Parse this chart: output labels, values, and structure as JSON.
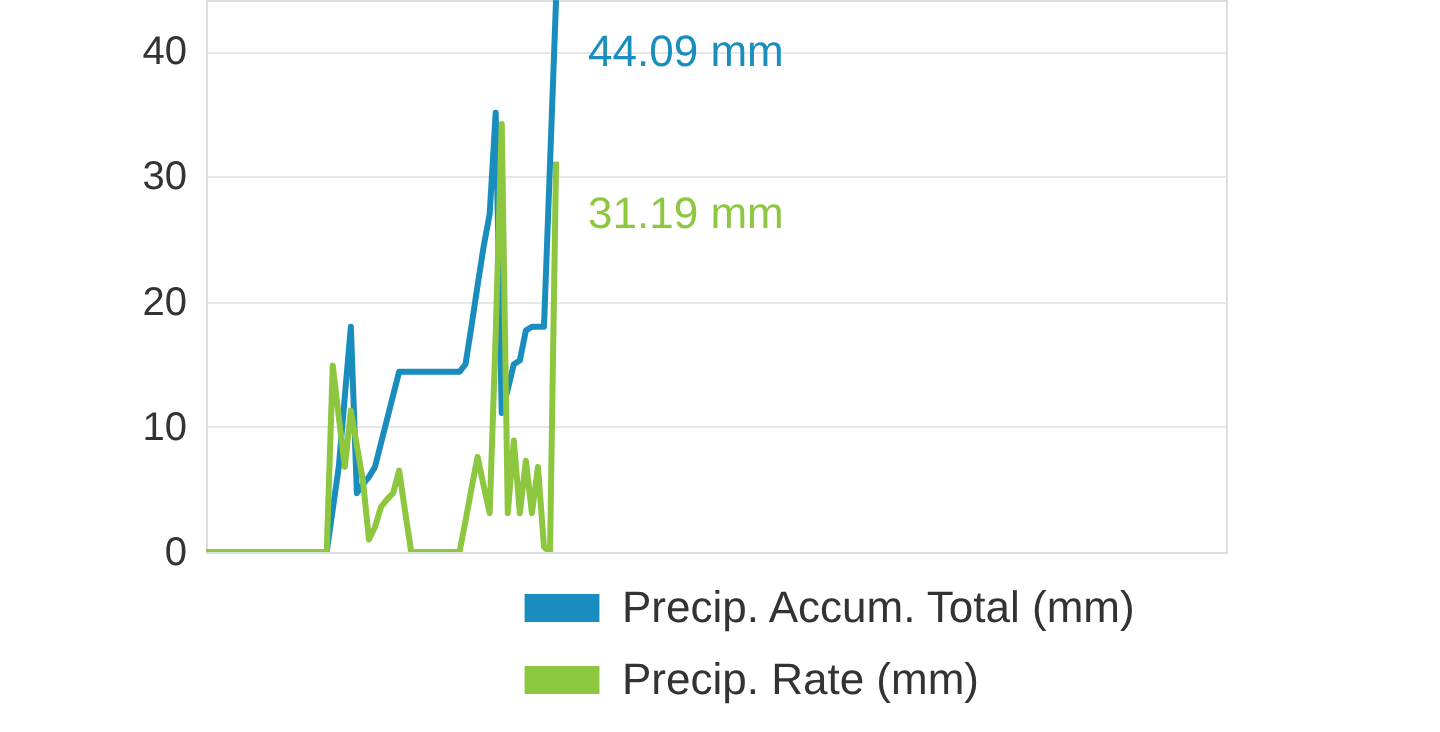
{
  "chart_data": {
    "type": "line",
    "categories": [
      null,
      null,
      null,
      null,
      null,
      null,
      null,
      null,
      null,
      null,
      null,
      null,
      null,
      null,
      null,
      null,
      null,
      null,
      null,
      null,
      null,
      null,
      null,
      null,
      null,
      null,
      null,
      null,
      null,
      null,
      null,
      null,
      null,
      null,
      null,
      null,
      null,
      null,
      null,
      null,
      null,
      null,
      null,
      null,
      null,
      null,
      null,
      null,
      null,
      null,
      null,
      null,
      null,
      null,
      null,
      null,
      null,
      null,
      null,
      null,
      null,
      null,
      null,
      null,
      null,
      null,
      null,
      null,
      null,
      null,
      null,
      null,
      null,
      null,
      null,
      null,
      null,
      null,
      null,
      null,
      null,
      null,
      null,
      null,
      null,
      null,
      null,
      null,
      null,
      null,
      null,
      null,
      null,
      null,
      null,
      null,
      null,
      null,
      null,
      null,
      null,
      null,
      null,
      null,
      null,
      null,
      null,
      null,
      null,
      null,
      null,
      null,
      null,
      null,
      null,
      null,
      null,
      null,
      null,
      null,
      null,
      null,
      null,
      null,
      null,
      null,
      null,
      null,
      null,
      null,
      null,
      null,
      null,
      null,
      null,
      null,
      null,
      null,
      null,
      null,
      null,
      null,
      null,
      null,
      null,
      null,
      null,
      null,
      null,
      null,
      null,
      null,
      null,
      null,
      null,
      null,
      null,
      null,
      null,
      null,
      null,
      null,
      null,
      null,
      null,
      null,
      null,
      null,
      null,
      null
    ],
    "series": [
      {
        "name": "Precip. Accum. Total (mm)",
        "color": "#1a8dbf",
        "values": [
          null,
          null,
          null,
          null,
          null,
          null,
          null,
          null,
          null,
          null,
          null,
          null,
          null,
          null,
          null,
          null,
          null,
          null,
          null,
          null,
          0,
          3.4,
          6.8,
          12.4,
          18.0,
          4.7,
          5.4,
          6.0,
          6.8,
          8.7,
          10.6,
          12.5,
          14.4,
          14.4,
          14.4,
          14.4,
          14.4,
          14.4,
          14.4,
          14.4,
          14.4,
          14.4,
          14.4,
          15.0,
          18.1,
          21.3,
          24.4,
          27.0,
          35.1,
          11.1,
          13.0,
          15.0,
          15.3,
          17.7,
          18.0,
          18.0,
          18.0,
          31.0,
          44.09,
          null,
          null,
          null,
          null,
          null,
          null,
          null,
          null,
          null,
          null,
          null,
          null,
          null,
          null,
          null,
          null,
          null,
          null,
          null,
          null,
          null,
          null,
          null,
          null,
          null,
          null,
          null,
          null,
          null,
          null,
          null,
          null,
          null,
          null,
          null,
          null,
          null,
          null,
          null,
          null,
          null,
          null,
          null,
          null,
          null,
          null,
          null,
          null,
          null,
          null,
          null,
          null,
          null,
          null,
          null,
          null,
          null,
          null,
          null,
          null,
          null,
          null,
          null,
          null,
          null,
          null,
          null,
          null,
          null,
          null,
          null,
          null,
          null,
          null,
          null,
          null,
          null,
          null,
          null,
          null,
          null,
          null,
          null,
          null,
          null,
          null,
          null,
          null,
          null,
          null,
          null,
          null,
          null,
          null,
          null,
          null,
          null,
          null,
          null,
          null,
          null,
          null,
          null,
          null,
          null,
          null,
          null,
          null,
          null,
          null,
          null
        ]
      },
      {
        "name": "Precip. Rate (mm)",
        "color": "#8dc63f",
        "values": [
          0,
          0,
          0,
          0,
          0,
          0,
          0,
          0,
          0,
          0,
          0,
          0,
          0,
          0,
          0,
          0,
          0,
          0,
          0,
          0,
          0,
          14.9,
          10.8,
          6.8,
          11.3,
          8.5,
          5.7,
          1.0,
          2.0,
          3.6,
          4.2,
          4.7,
          6.5,
          3.2,
          0,
          0,
          0,
          0,
          0,
          0,
          0,
          0,
          0,
          2.5,
          5.1,
          7.6,
          5.3,
          3.1,
          17.4,
          34.2,
          3.1,
          8.9,
          3.1,
          7.3,
          3.1,
          6.8,
          0.4,
          0,
          31.19,
          null,
          null,
          null,
          null,
          null,
          null,
          null,
          null,
          null,
          null,
          null,
          null,
          null,
          null,
          null,
          null,
          null,
          null,
          null,
          null,
          null,
          null,
          null,
          null,
          null,
          null,
          null,
          null,
          null,
          null,
          null,
          null,
          null,
          null,
          null,
          null,
          null,
          null,
          null,
          null,
          null,
          null,
          null,
          null,
          null,
          null,
          null,
          null,
          null,
          null,
          null,
          null,
          null,
          null,
          null,
          null,
          null,
          null,
          null,
          null,
          null,
          null,
          null,
          null,
          null,
          null,
          null,
          null,
          null,
          null,
          null,
          null,
          null,
          null,
          null,
          null,
          null,
          null,
          null,
          null,
          null,
          null,
          null,
          null,
          null,
          null,
          null,
          null,
          null,
          null,
          null,
          null,
          null,
          null,
          null,
          null,
          null,
          null,
          null,
          null,
          null,
          null,
          null,
          null,
          null,
          null,
          null,
          null,
          null,
          null,
          null
        ]
      }
    ],
    "annotations": [
      "44.09 mm",
      "31.19 mm"
    ],
    "ylim": [
      0,
      44.1
    ],
    "yticks": [
      0,
      10,
      20,
      30,
      40
    ],
    "grid": "y",
    "tick_labels": "y",
    "legend": "bottom right"
  }
}
